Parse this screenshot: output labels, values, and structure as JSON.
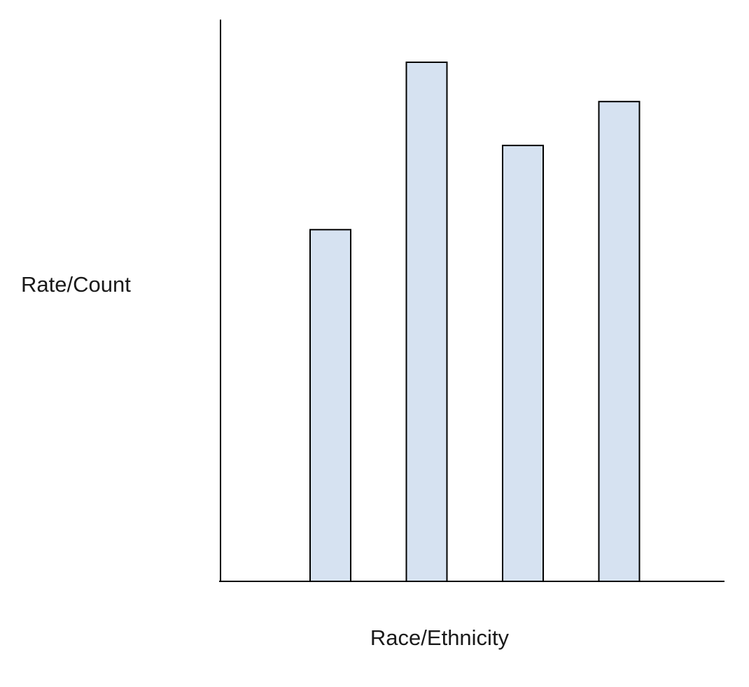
{
  "chart_data": {
    "type": "bar",
    "title": "",
    "xlabel": "Race/Ethnicity",
    "ylabel": "Rate/Count",
    "categories": [
      "",
      "",
      "",
      ""
    ],
    "values": [
      62.6,
      92.4,
      77.6,
      85.4
    ],
    "ylim": [
      0,
      100
    ],
    "grid": false,
    "legend": "none",
    "bar_color": "#d6e2f1",
    "bar_outline_color": "#000000",
    "axis_color": "#000000"
  }
}
